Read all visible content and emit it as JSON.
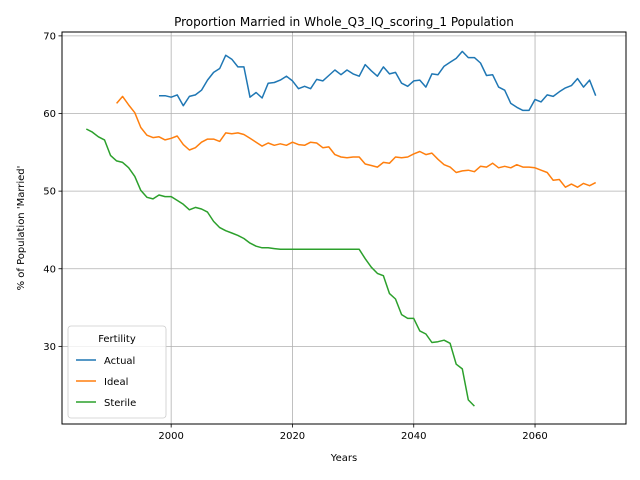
{
  "chart_data": {
    "type": "line",
    "title": "Proportion Married in Whole_Q3_IQ_scoring_1 Population",
    "xlabel": "Years",
    "ylabel": "% of Population 'Married'",
    "xlim": [
      1982,
      2075
    ],
    "ylim": [
      20,
      70.5
    ],
    "xticks": [
      2000,
      2020,
      2040,
      2060
    ],
    "yticks": [
      30,
      40,
      50,
      60,
      70
    ],
    "grid": true,
    "legend": {
      "title": "Fertility",
      "placement": "lower-left"
    },
    "series": [
      {
        "name": "Actual",
        "color": "#1f77b4",
        "x": [
          1998,
          1999,
          2000,
          2001,
          2002,
          2003,
          2004,
          2005,
          2006,
          2007,
          2008,
          2009,
          2010,
          2011,
          2012,
          2013,
          2014,
          2015,
          2016,
          2017,
          2018,
          2019,
          2020,
          2021,
          2022,
          2023,
          2024,
          2025,
          2026,
          2027,
          2028,
          2029,
          2030,
          2031,
          2032,
          2033,
          2034,
          2035,
          2036,
          2037,
          2038,
          2039,
          2040,
          2041,
          2042,
          2043,
          2044,
          2045,
          2046,
          2047,
          2048,
          2049,
          2050,
          2051,
          2052,
          2053,
          2054,
          2055,
          2056,
          2057,
          2058,
          2059,
          2060,
          2061,
          2062,
          2063,
          2064,
          2065,
          2066,
          2067,
          2068,
          2069,
          2070
        ],
        "values": [
          62.3,
          62.3,
          62.1,
          62.4,
          61.0,
          62.2,
          62.4,
          63.0,
          64.3,
          65.3,
          65.8,
          67.5,
          67.0,
          66.0,
          66.0,
          62.1,
          62.7,
          62.0,
          63.9,
          64.0,
          64.3,
          64.8,
          64.2,
          63.2,
          63.5,
          63.2,
          64.4,
          64.2,
          64.9,
          65.6,
          65.0,
          65.6,
          65.1,
          64.8,
          66.3,
          65.5,
          64.8,
          66.0,
          65.1,
          65.3,
          63.9,
          63.5,
          64.2,
          64.3,
          63.4,
          65.1,
          65.0,
          66.1,
          66.6,
          67.1,
          68.0,
          67.2,
          67.2,
          66.5,
          64.9,
          65.0,
          63.4,
          63.0,
          61.3,
          60.8,
          60.4,
          60.4,
          61.8,
          61.5,
          62.4,
          62.2,
          62.8,
          63.3,
          63.6,
          64.5,
          63.4,
          64.3,
          62.3
        ]
      },
      {
        "name": "Ideal",
        "color": "#ff7f0e",
        "x": [
          1991,
          1992,
          1993,
          1994,
          1995,
          1996,
          1997,
          1998,
          1999,
          2000,
          2001,
          2002,
          2003,
          2004,
          2005,
          2006,
          2007,
          2008,
          2009,
          2010,
          2011,
          2012,
          2013,
          2014,
          2015,
          2016,
          2017,
          2018,
          2019,
          2020,
          2021,
          2022,
          2023,
          2024,
          2025,
          2026,
          2027,
          2028,
          2029,
          2030,
          2031,
          2032,
          2033,
          2034,
          2035,
          2036,
          2037,
          2038,
          2039,
          2040,
          2041,
          2042,
          2043,
          2044,
          2045,
          2046,
          2047,
          2048,
          2049,
          2050,
          2051,
          2052,
          2053,
          2054,
          2055,
          2056,
          2057,
          2058,
          2059,
          2060,
          2061,
          2062,
          2063,
          2064,
          2065,
          2066,
          2067,
          2068,
          2069,
          2070
        ],
        "values": [
          61.3,
          62.2,
          61.1,
          60.1,
          58.2,
          57.2,
          56.9,
          57.0,
          56.6,
          56.8,
          57.1,
          56.0,
          55.3,
          55.6,
          56.3,
          56.7,
          56.7,
          56.4,
          57.5,
          57.4,
          57.5,
          57.3,
          56.8,
          56.3,
          55.8,
          56.2,
          55.9,
          56.1,
          55.9,
          56.3,
          56.0,
          55.9,
          56.3,
          56.2,
          55.6,
          55.7,
          54.7,
          54.4,
          54.3,
          54.4,
          54.4,
          53.5,
          53.3,
          53.1,
          53.7,
          53.6,
          54.4,
          54.3,
          54.4,
          54.8,
          55.1,
          54.7,
          54.9,
          54.1,
          53.4,
          53.1,
          52.4,
          52.6,
          52.7,
          52.5,
          53.2,
          53.1,
          53.6,
          53.0,
          53.2,
          53.0,
          53.4,
          53.1,
          53.1,
          53.0,
          52.7,
          52.4,
          51.4,
          51.5,
          50.5,
          50.9,
          50.5,
          51.0,
          50.7,
          51.1
        ]
      },
      {
        "name": "Sterile",
        "color": "#2ca02c",
        "x": [
          1986,
          1987,
          1988,
          1989,
          1990,
          1991,
          1992,
          1993,
          1994,
          1995,
          1996,
          1997,
          1998,
          1999,
          2000,
          2001,
          2002,
          2003,
          2004,
          2005,
          2006,
          2007,
          2008,
          2009,
          2010,
          2011,
          2012,
          2013,
          2014,
          2015,
          2016,
          2017,
          2018,
          2019,
          2020,
          2021,
          2022,
          2023,
          2024,
          2025,
          2026,
          2027,
          2028,
          2029,
          2030,
          2031,
          2032,
          2033,
          2034,
          2035,
          2036,
          2037,
          2038,
          2039,
          2040,
          2041,
          2042,
          2043,
          2044,
          2045,
          2046,
          2047,
          2048,
          2049,
          2050
        ],
        "values": [
          58.0,
          57.6,
          57.0,
          56.6,
          54.6,
          53.9,
          53.7,
          53.0,
          51.9,
          50.1,
          49.2,
          49.0,
          49.5,
          49.3,
          49.3,
          48.8,
          48.3,
          47.6,
          47.9,
          47.7,
          47.3,
          46.1,
          45.3,
          44.9,
          44.6,
          44.3,
          43.9,
          43.3,
          42.9,
          42.7,
          42.7,
          42.6,
          42.5,
          42.5,
          42.5,
          42.5,
          42.5,
          42.5,
          42.5,
          42.5,
          42.5,
          42.5,
          42.5,
          42.5,
          42.5,
          42.5,
          41.3,
          40.2,
          39.4,
          39.1,
          36.8,
          36.1,
          34.1,
          33.6,
          33.6,
          32.0,
          31.6,
          30.5,
          30.6,
          30.8,
          30.4,
          27.7,
          27.1,
          23.1,
          22.3
        ]
      }
    ]
  }
}
